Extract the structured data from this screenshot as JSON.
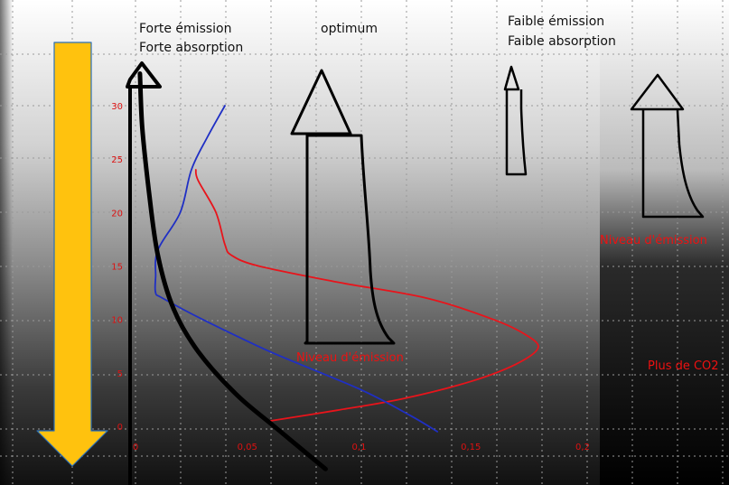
{
  "colors": {
    "arrow": "#ffc20e",
    "emission_curve": "#e8141b",
    "temperature_curve": "#1f2fc4",
    "axis": "#000000",
    "tick_labels": "#d11111",
    "annotations": "#e8141b"
  },
  "headers": {
    "strong": [
      "Forte émission",
      "Forte absorption"
    ],
    "optimum": "optimum",
    "weak": [
      "Faible émission",
      "Faible absorption"
    ]
  },
  "annotations": {
    "emission_level_center": "Niveau d'émission",
    "emission_level_right": "Niveau d'émission",
    "more_co2": "Plus de CO2"
  },
  "icons": [
    "down-arrow-icon",
    "up-arrow-icon"
  ],
  "chart_data": {
    "type": "line",
    "title": "",
    "xlabel": "",
    "ylabel": "",
    "xlim": [
      0,
      0.2
    ],
    "ylim": [
      0,
      30
    ],
    "x_ticks": [
      {
        "value": 0,
        "label": "0"
      },
      {
        "value": 0.05,
        "label": "0,05"
      },
      {
        "value": 0.1,
        "label": "0,1"
      },
      {
        "value": 0.15,
        "label": "0,15"
      },
      {
        "value": 0.2,
        "label": "0,2"
      }
    ],
    "y_ticks": [
      {
        "value": 0,
        "label": "0"
      },
      {
        "value": 5,
        "label": "5"
      },
      {
        "value": 10,
        "label": "10"
      },
      {
        "value": 15,
        "label": "15"
      },
      {
        "value": 20,
        "label": "20"
      },
      {
        "value": 25,
        "label": "25"
      },
      {
        "value": 30,
        "label": "30"
      }
    ],
    "grid": true,
    "series": [
      {
        "color": "#e8141b",
        "points": [
          [
            0.06,
            0.5
          ],
          [
            0.09,
            1.5
          ],
          [
            0.12,
            2.6
          ],
          [
            0.15,
            4.2
          ],
          [
            0.17,
            5.8
          ],
          [
            0.18,
            7.3
          ],
          [
            0.175,
            8.5
          ],
          [
            0.16,
            10
          ],
          [
            0.13,
            12
          ],
          [
            0.09,
            13.5
          ],
          [
            0.055,
            15
          ],
          [
            0.043,
            16
          ],
          [
            0.04,
            17
          ],
          [
            0.036,
            20
          ],
          [
            0.028,
            23
          ],
          [
            0.027,
            24
          ]
        ]
      },
      {
        "color": "#1f2fc4",
        "points": [
          [
            0.135,
            -0.5
          ],
          [
            0.123,
            1
          ],
          [
            0.1,
            3.5
          ],
          [
            0.06,
            7
          ],
          [
            0.03,
            10
          ],
          [
            0.012,
            12
          ],
          [
            0.009,
            12.5
          ],
          [
            0.009,
            14
          ],
          [
            0.01,
            16.5
          ],
          [
            0.02,
            20
          ],
          [
            0.025,
            24
          ],
          [
            0.032,
            27
          ],
          [
            0.04,
            30
          ]
        ]
      },
      {
        "color": "#000000",
        "points": [
          [
            0.002,
            33
          ],
          [
            0.003,
            28
          ],
          [
            0.006,
            22
          ],
          [
            0.01,
            16
          ],
          [
            0.017,
            11
          ],
          [
            0.028,
            7
          ],
          [
            0.045,
            3
          ],
          [
            0.062,
            0
          ],
          [
            0.085,
            -4
          ]
        ]
      }
    ]
  }
}
